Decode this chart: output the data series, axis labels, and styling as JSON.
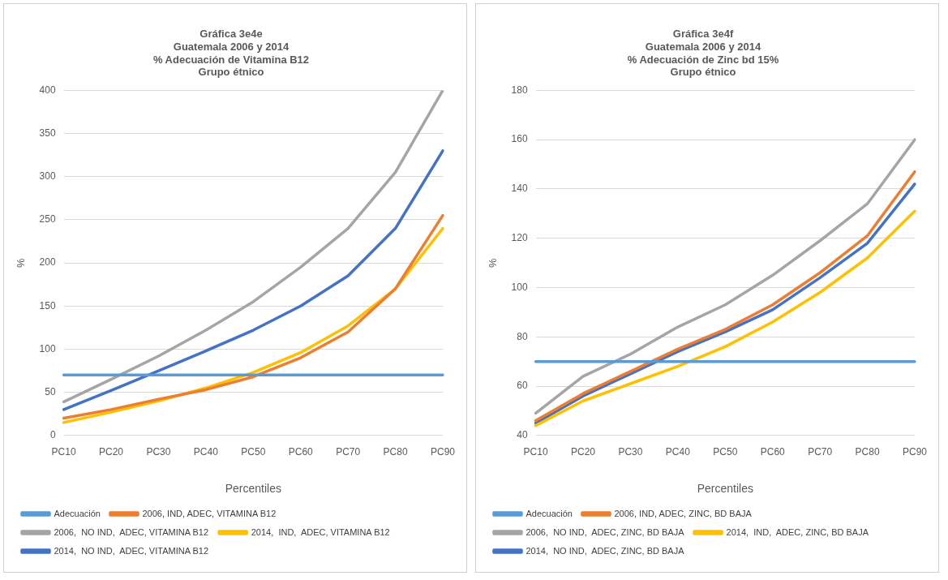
{
  "chart_data": [
    {
      "type": "line",
      "title": "Gráfica 3e4e\nGuatemala 2006 y 2014\n% Adecuación de Vitamina B12\nGrupo étnico",
      "xlabel": "Percentiles",
      "ylabel": "%",
      "categories": [
        "PC10",
        "PC20",
        "PC30",
        "PC40",
        "PC50",
        "PC60",
        "PC70",
        "PC80",
        "PC90"
      ],
      "series": [
        {
          "name": "Adecuación",
          "color": "#5b9bd5",
          "values": [
            70,
            70,
            70,
            70,
            70,
            70,
            70,
            70,
            70
          ]
        },
        {
          "name": "2006, IND, ADEC, VITAMINA B12",
          "color": "#ed7d31",
          "values": [
            20,
            30,
            42,
            53,
            68,
            90,
            120,
            170,
            255
          ]
        },
        {
          "name": "2006,  NO IND,  ADEC, VITAMINA B12",
          "color": "#a5a5a5",
          "values": [
            39,
            65,
            92,
            122,
            155,
            195,
            240,
            305,
            400
          ]
        },
        {
          "name": "2014,  IND,  ADEC, VITAMINA B12",
          "color": "#ffc000",
          "values": [
            15,
            27,
            40,
            55,
            73,
            96,
            127,
            170,
            240
          ]
        },
        {
          "name": "2014,  NO IND,  ADEC, VITAMINA B12",
          "color": "#4472c4",
          "values": [
            30,
            52,
            75,
            98,
            122,
            150,
            185,
            240,
            330
          ]
        }
      ],
      "ylim": [
        0,
        400
      ],
      "yticks": [
        0,
        50,
        100,
        150,
        200,
        250,
        300,
        350,
        400
      ],
      "grid": "y",
      "legend": "bottom",
      "marker": "none"
    },
    {
      "type": "line",
      "title": "Gráfica 3e4f\nGuatemala 2006 y 2014\n% Adecuación de Zinc bd 15%\nGrupo étnico",
      "xlabel": "Percentiles",
      "ylabel": "%",
      "categories": [
        "PC10",
        "PC20",
        "PC30",
        "PC40",
        "PC50",
        "PC60",
        "PC70",
        "PC80",
        "PC90"
      ],
      "series": [
        {
          "name": "Adecuación",
          "color": "#5b9bd5",
          "values": [
            70,
            70,
            70,
            70,
            70,
            70,
            70,
            70,
            70
          ]
        },
        {
          "name": "2006, IND, ADEC, ZINC, BD BAJA",
          "color": "#ed7d31",
          "values": [
            46,
            57,
            66,
            75,
            83,
            93,
            106,
            121,
            147
          ]
        },
        {
          "name": "2006,  NO IND,  ADEC, ZINC, BD BAJA",
          "color": "#a5a5a5",
          "values": [
            49,
            64,
            73,
            84,
            93,
            105,
            119,
            134,
            160
          ]
        },
        {
          "name": "2014,  IND,  ADEC, ZINC, BD BAJA",
          "color": "#ffc000",
          "values": [
            44,
            54,
            61,
            68,
            76,
            86,
            98,
            112,
            131
          ]
        },
        {
          "name": "2014,  NO IND,  ADEC, ZINC, BD BAJA",
          "color": "#4472c4",
          "values": [
            45,
            56,
            65,
            74,
            82,
            91,
            104,
            118,
            142
          ]
        }
      ],
      "ylim": [
        40,
        180
      ],
      "yticks": [
        40,
        60,
        80,
        100,
        120,
        140,
        160,
        180
      ],
      "grid": "y",
      "legend": "bottom",
      "marker": "none"
    }
  ]
}
